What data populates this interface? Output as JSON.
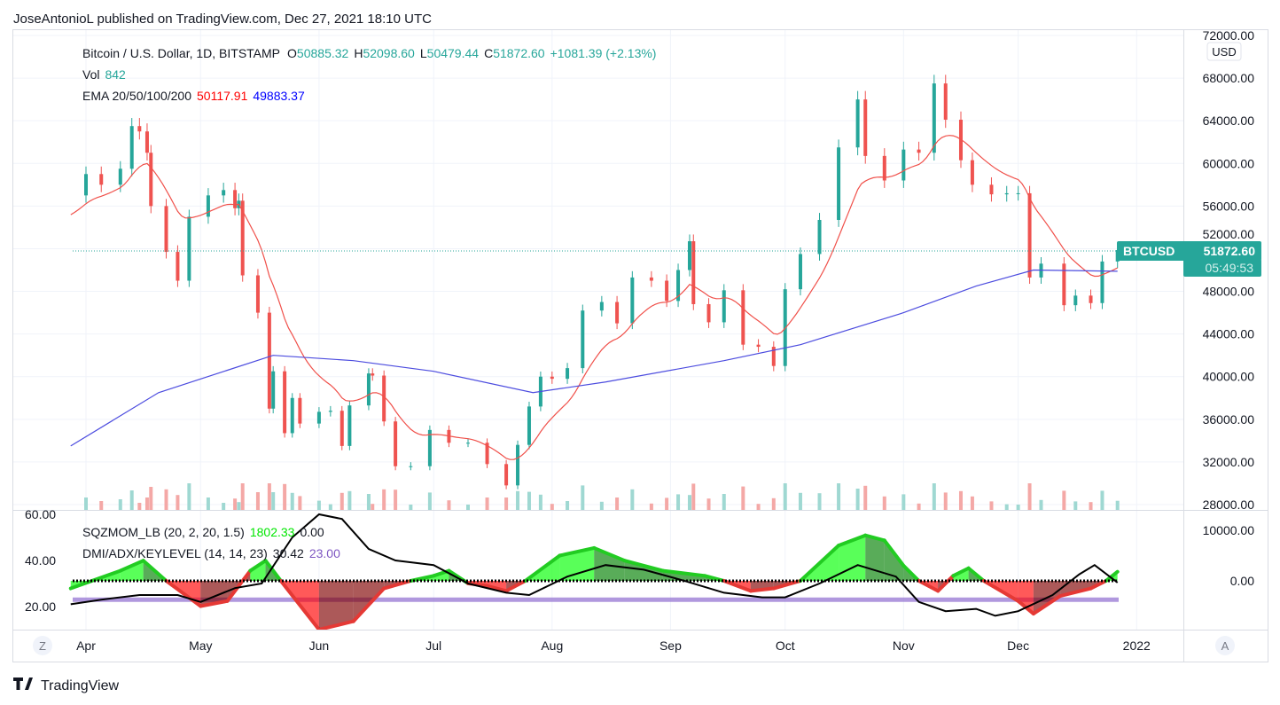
{
  "publish_line": "JoseAntonioL published on TradingView.com, Dec 27, 2021 18:10 UTC",
  "branding": "TradingView",
  "legend": {
    "symbol": "Bitcoin / U.S. Dollar, 1D, BITSTAMP",
    "o_label": "O",
    "o": "50885.32",
    "h_label": "H",
    "h": "52098.60",
    "l_label": "L",
    "l": "50479.44",
    "c_label": "C",
    "c": "51872.60",
    "change": "+1081.39 (+2.13%)",
    "vol_label": "Vol",
    "vol": "842",
    "ema_label": "EMA 20/50/100/200",
    "ema_a": "50117.91",
    "ema_b": "49883.37",
    "sqz_label": "SQZMOM_LB (20, 2, 20, 1.5)",
    "sqz_val": "1802.33",
    "sqz_val2": "0.00",
    "dmi_label": "DMI/ADX/KEYLEVEL (14, 14, 23)",
    "dmi_val": "30.42",
    "dmi_key": "23.00"
  },
  "price_tag": {
    "symbol": "BTCUSD",
    "price": "51872.60",
    "countdown": "05:49:53"
  },
  "currency": "USD",
  "buttons": {
    "z": "Z",
    "a": "A"
  },
  "colors": {
    "up": "#26a69a",
    "down": "#ef5350",
    "ema20": "#f0504a",
    "ema200": "#4c4cdf",
    "accent": "#26a69a",
    "keylevel": "#9d7fd6",
    "adx": "#000000"
  },
  "chart_data": {
    "type": "candlestick",
    "x_ticks": [
      "Apr",
      "May",
      "Jun",
      "Jul",
      "Aug",
      "Sep",
      "Oct",
      "Nov",
      "Dec",
      "2022"
    ],
    "x_tick_dates": [
      "2021-04-01",
      "2021-05-01",
      "2021-06-01",
      "2021-07-01",
      "2021-08-01",
      "2021-09-01",
      "2021-10-01",
      "2021-11-01",
      "2021-12-01",
      "2022-01-01"
    ],
    "y_ticks": [
      "72000.00",
      "68000.00",
      "64000.00",
      "60000.00",
      "56000.00",
      "52000.00",
      "48000.00",
      "44000.00",
      "40000.00",
      "36000.00",
      "32000.00",
      "28000.00"
    ],
    "ylim": [
      28000,
      72000
    ],
    "price": [
      [
        "2021-03-28",
        57000
      ],
      [
        "2021-04-01",
        59000
      ],
      [
        "2021-04-05",
        58000
      ],
      [
        "2021-04-10",
        59500
      ],
      [
        "2021-04-13",
        63500
      ],
      [
        "2021-04-15",
        63000
      ],
      [
        "2021-04-17",
        61000
      ],
      [
        "2021-04-18",
        56000
      ],
      [
        "2021-04-22",
        51700
      ],
      [
        "2021-04-25",
        49000
      ],
      [
        "2021-04-28",
        55000
      ],
      [
        "2021-05-03",
        57000
      ],
      [
        "2021-05-07",
        57500
      ],
      [
        "2021-05-10",
        55800
      ],
      [
        "2021-05-11",
        56500
      ],
      [
        "2021-05-12",
        49500
      ],
      [
        "2021-05-16",
        46000
      ],
      [
        "2021-05-19",
        37000
      ],
      [
        "2021-05-20",
        40500
      ],
      [
        "2021-05-23",
        34700
      ],
      [
        "2021-05-25",
        38000
      ],
      [
        "2021-05-27",
        35600
      ],
      [
        "2021-06-01",
        36700
      ],
      [
        "2021-06-04",
        36800
      ],
      [
        "2021-06-07",
        33500
      ],
      [
        "2021-06-09",
        37300
      ],
      [
        "2021-06-14",
        40300
      ],
      [
        "2021-06-15",
        40100
      ],
      [
        "2021-06-18",
        35800
      ],
      [
        "2021-06-21",
        31600
      ],
      [
        "2021-06-25",
        31600
      ],
      [
        "2021-06-30",
        35000
      ],
      [
        "2021-07-05",
        33800
      ],
      [
        "2021-07-10",
        33800
      ],
      [
        "2021-07-15",
        31800
      ],
      [
        "2021-07-20",
        29800
      ],
      [
        "2021-07-23",
        33600
      ],
      [
        "2021-07-26",
        37200
      ],
      [
        "2021-07-29",
        40000
      ],
      [
        "2021-08-01",
        39800
      ],
      [
        "2021-08-05",
        40800
      ],
      [
        "2021-08-09",
        46200
      ],
      [
        "2021-08-14",
        47000
      ],
      [
        "2021-08-18",
        45000
      ],
      [
        "2021-08-22",
        49300
      ],
      [
        "2021-08-27",
        49000
      ],
      [
        "2021-08-31",
        47100
      ],
      [
        "2021-09-03",
        50000
      ],
      [
        "2021-09-06",
        52700
      ],
      [
        "2021-09-07",
        46800
      ],
      [
        "2021-09-11",
        45100
      ],
      [
        "2021-09-15",
        48100
      ],
      [
        "2021-09-20",
        43000
      ],
      [
        "2021-09-24",
        42800
      ],
      [
        "2021-09-28",
        41000
      ],
      [
        "2021-10-01",
        48200
      ],
      [
        "2021-10-05",
        51500
      ],
      [
        "2021-10-10",
        54700
      ],
      [
        "2021-10-15",
        61500
      ],
      [
        "2021-10-20",
        66000
      ],
      [
        "2021-10-22",
        60700
      ],
      [
        "2021-10-27",
        58400
      ],
      [
        "2021-11-01",
        61300
      ],
      [
        "2021-11-05",
        61000
      ],
      [
        "2021-11-09",
        67500
      ],
      [
        "2021-11-12",
        64100
      ],
      [
        "2021-11-16",
        60300
      ],
      [
        "2021-11-19",
        58000
      ],
      [
        "2021-11-24",
        57100
      ],
      [
        "2021-11-28",
        57200
      ],
      [
        "2021-12-01",
        57200
      ],
      [
        "2021-12-04",
        49300
      ],
      [
        "2021-12-07",
        50600
      ],
      [
        "2021-12-13",
        46700
      ],
      [
        "2021-12-16",
        47600
      ],
      [
        "2021-12-20",
        46900
      ],
      [
        "2021-12-23",
        50800
      ],
      [
        "2021-12-27",
        51872.6
      ]
    ],
    "ema200": [
      [
        "2021-03-28",
        33500
      ],
      [
        "2021-04-20",
        38500
      ],
      [
        "2021-05-20",
        42000
      ],
      [
        "2021-06-10",
        41500
      ],
      [
        "2021-07-01",
        40500
      ],
      [
        "2021-07-27",
        38500
      ],
      [
        "2021-08-15",
        39500
      ],
      [
        "2021-09-15",
        41500
      ],
      [
        "2021-10-05",
        43000
      ],
      [
        "2021-11-01",
        46000
      ],
      [
        "2021-11-20",
        48500
      ],
      [
        "2021-12-05",
        50000
      ],
      [
        "2021-12-27",
        49883.37
      ]
    ],
    "momentum": {
      "right_ticks": [
        "10000.00",
        "0.00"
      ],
      "left_ticks": [
        "60.00",
        "40.00",
        "20.00"
      ],
      "keylevel": 23,
      "sqz": [
        [
          "2021-03-28",
          -1500
        ],
        [
          "2021-04-10",
          2000
        ],
        [
          "2021-04-16",
          4000
        ],
        [
          "2021-04-22",
          0
        ],
        [
          "2021-05-01",
          -5000
        ],
        [
          "2021-05-08",
          -4000
        ],
        [
          "2021-05-14",
          2000
        ],
        [
          "2021-05-18",
          4000
        ],
        [
          "2021-05-22",
          0
        ],
        [
          "2021-06-01",
          -10000
        ],
        [
          "2021-06-10",
          -8000
        ],
        [
          "2021-06-18",
          -1500
        ],
        [
          "2021-06-25",
          0
        ],
        [
          "2021-07-01",
          1000
        ],
        [
          "2021-07-05",
          2000
        ],
        [
          "2021-07-10",
          -500
        ],
        [
          "2021-07-15",
          -1000
        ],
        [
          "2021-07-20",
          -2000
        ],
        [
          "2021-07-25",
          0
        ],
        [
          "2021-08-03",
          5000
        ],
        [
          "2021-08-12",
          6500
        ],
        [
          "2021-08-20",
          4000
        ],
        [
          "2021-08-30",
          2000
        ],
        [
          "2021-09-10",
          1000
        ],
        [
          "2021-09-15",
          0
        ],
        [
          "2021-09-22",
          -2000
        ],
        [
          "2021-09-28",
          -1500
        ],
        [
          "2021-10-05",
          0
        ],
        [
          "2021-10-15",
          7000
        ],
        [
          "2021-10-22",
          9000
        ],
        [
          "2021-10-27",
          8000
        ],
        [
          "2021-11-01",
          3000
        ],
        [
          "2021-11-05",
          0
        ],
        [
          "2021-11-10",
          -2000
        ],
        [
          "2021-11-14",
          1000
        ],
        [
          "2021-11-18",
          2500
        ],
        [
          "2021-11-22",
          0
        ],
        [
          "2021-12-01",
          -4000
        ],
        [
          "2021-12-05",
          -6500
        ],
        [
          "2021-12-12",
          -3000
        ],
        [
          "2021-12-20",
          -1500
        ],
        [
          "2021-12-24",
          0
        ],
        [
          "2021-12-27",
          1802.33
        ]
      ],
      "adx": [
        [
          "2021-03-28",
          21
        ],
        [
          "2021-04-05",
          23
        ],
        [
          "2021-04-15",
          25
        ],
        [
          "2021-04-25",
          25
        ],
        [
          "2021-05-01",
          22
        ],
        [
          "2021-05-10",
          28
        ],
        [
          "2021-05-17",
          30
        ],
        [
          "2021-05-25",
          50
        ],
        [
          "2021-06-01",
          60
        ],
        [
          "2021-06-07",
          58
        ],
        [
          "2021-06-14",
          45
        ],
        [
          "2021-06-21",
          40
        ],
        [
          "2021-07-01",
          38
        ],
        [
          "2021-07-10",
          30
        ],
        [
          "2021-07-20",
          26
        ],
        [
          "2021-07-26",
          25
        ],
        [
          "2021-08-05",
          33
        ],
        [
          "2021-08-15",
          38
        ],
        [
          "2021-08-25",
          36
        ],
        [
          "2021-09-05",
          31
        ],
        [
          "2021-09-15",
          26
        ],
        [
          "2021-09-25",
          24
        ],
        [
          "2021-10-01",
          24
        ],
        [
          "2021-10-10",
          30
        ],
        [
          "2021-10-20",
          38
        ],
        [
          "2021-10-30",
          33
        ],
        [
          "2021-11-05",
          22
        ],
        [
          "2021-11-12",
          18
        ],
        [
          "2021-11-20",
          19
        ],
        [
          "2021-11-25",
          16
        ],
        [
          "2021-12-01",
          18
        ],
        [
          "2021-12-10",
          25
        ],
        [
          "2021-12-17",
          34
        ],
        [
          "2021-12-21",
          38
        ],
        [
          "2021-12-27",
          30.42
        ]
      ]
    }
  }
}
